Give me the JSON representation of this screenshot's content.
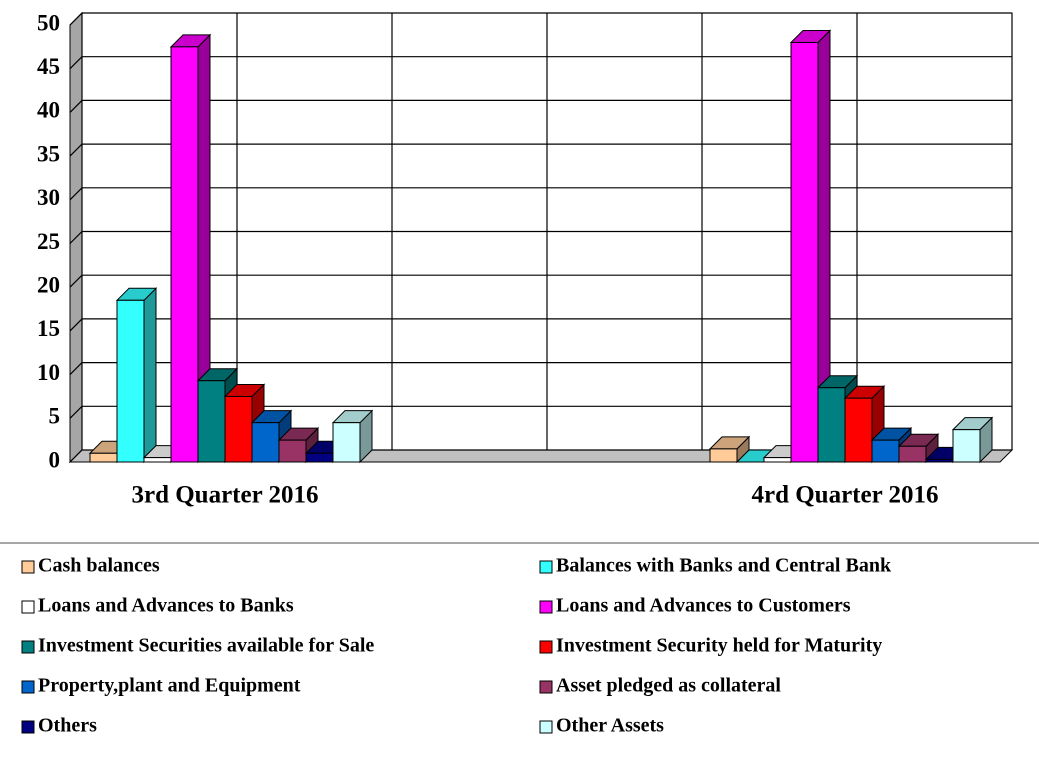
{
  "chart_data": {
    "type": "bar3d",
    "categories": [
      "3rd Quarter 2016",
      null,
      "4rd Quarter 2016"
    ],
    "series": [
      {
        "name": "Cash balances",
        "color": "#ffcc99",
        "values": [
          1,
          null,
          1.5
        ]
      },
      {
        "name": "Balances with Banks and Central Bank",
        "color": "#33ffff",
        "values": [
          18.5,
          null,
          0
        ]
      },
      {
        "name": "Loans and Advances to Banks",
        "color": "#ffffff",
        "values": [
          0.5,
          null,
          0.5
        ]
      },
      {
        "name": "Loans and Advances to Customers",
        "color": "#ff00ff",
        "values": [
          47.5,
          null,
          48
        ]
      },
      {
        "name": "Investment Securities available for Sale",
        "color": "#008080",
        "values": [
          9.3,
          null,
          8.5
        ]
      },
      {
        "name": "Investment Security held for Maturity",
        "color": "#ff0000",
        "values": [
          7.5,
          null,
          7.3
        ]
      },
      {
        "name": "Property,plant and Equipment",
        "color": "#0066cc",
        "values": [
          4.5,
          null,
          2.5
        ]
      },
      {
        "name": "Asset pledged as collateral",
        "color": "#993366",
        "values": [
          2.5,
          null,
          1.8
        ]
      },
      {
        "name": "Others",
        "color": "#000080",
        "values": [
          1,
          null,
          0.3
        ]
      },
      {
        "name": "Other Assets",
        "color": "#ccffff",
        "values": [
          4.5,
          null,
          3.7
        ]
      }
    ],
    "ylim": [
      0,
      50
    ],
    "yticks": [
      0,
      5,
      10,
      15,
      20,
      25,
      30,
      35,
      40,
      45,
      50
    ],
    "grid": true
  }
}
